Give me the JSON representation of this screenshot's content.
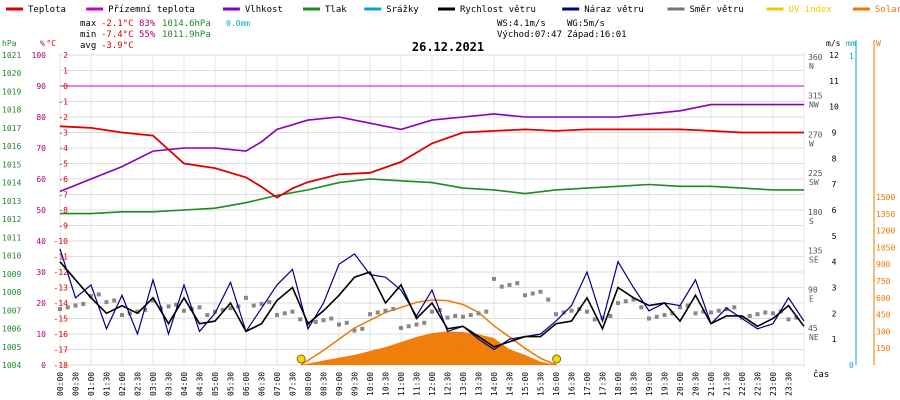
{
  "chart_data": {
    "type": "line",
    "title": "26.12.2021",
    "x_unit_label": "čas",
    "x_ticks": [
      "00:00",
      "00:30",
      "01:00",
      "01:30",
      "02:00",
      "02:30",
      "03:00",
      "03:30",
      "04:00",
      "04:30",
      "05:00",
      "05:30",
      "06:00",
      "06:30",
      "07:00",
      "07:30",
      "08:00",
      "08:30",
      "09:00",
      "09:30",
      "10:00",
      "10:30",
      "11:00",
      "11:30",
      "12:00",
      "12:30",
      "13:00",
      "13:30",
      "14:00",
      "14:30",
      "15:00",
      "15:30",
      "16:00",
      "16:30",
      "17:00",
      "17:30",
      "18:00",
      "18:30",
      "19:00",
      "19:30",
      "20:00",
      "20:30",
      "21:00",
      "21:30",
      "22:00",
      "22:30",
      "23:00",
      "23:30"
    ],
    "legend": [
      {
        "key": "teplota",
        "label": "Teplota",
        "color": "#dd0000"
      },
      {
        "key": "pocitova",
        "label": "Přízemní teplota",
        "color": "#cc00cc"
      },
      {
        "key": "vlhkost",
        "label": "Vlhkost",
        "color": "#8800bb"
      },
      {
        "key": "tlak",
        "label": "Tlak",
        "color": "#228822"
      },
      {
        "key": "srazky",
        "label": "Srážky",
        "color": "#00aacc"
      },
      {
        "key": "rychlost",
        "label": "Rychlost větru",
        "color": "#000000"
      },
      {
        "key": "naraz",
        "label": "Náraz větru",
        "color": "#000088"
      },
      {
        "key": "smer",
        "label": "Směr větru",
        "color": "#777777"
      },
      {
        "key": "uv",
        "label": "UV index",
        "color": "#eecc00"
      },
      {
        "key": "solar",
        "label": "Solar",
        "color": "#ee7700"
      }
    ],
    "stats": {
      "max_label": "max",
      "max_temp": "-2.1°C",
      "max_hum": "83%",
      "max_press": "1014.6hPa",
      "max_rain": "0.0mm",
      "min_label": "min",
      "min_temp": "-7.4°C",
      "min_hum": "55%",
      "min_press": "1011.9hPa",
      "avg_label": "avg",
      "avg_temp": "-3.9°C"
    },
    "wind_info": {
      "ws": "WS:4.1m/s",
      "wg": "WG:5m/s",
      "sunrise": "Východ:07:47",
      "sunset": "Západ:16:01"
    },
    "axes": {
      "press": {
        "unit": "hPa",
        "color": "#228822",
        "ticks": [
          "1021",
          "1020",
          "1019",
          "1018",
          "1017",
          "1016",
          "1015",
          "1014",
          "1013",
          "1012",
          "1011",
          "1010",
          "1009",
          "1008",
          "1007",
          "1006",
          "1005",
          "1004"
        ]
      },
      "hum": {
        "unit": "%",
        "color": "#aa0077",
        "ticks": [
          "100",
          "90",
          "80",
          "70",
          "60",
          "50",
          "40",
          "30",
          "20",
          "10",
          "0"
        ]
      },
      "temp": {
        "unit": "°C",
        "color": "#dd0000",
        "ticks": [
          "2",
          "1",
          "0",
          "-1",
          "-2",
          "-3",
          "-4",
          "-5",
          "-6",
          "-7",
          "-8",
          "-9",
          "-10",
          "-11",
          "-12",
          "-13",
          "-14",
          "-15",
          "-16",
          "-17",
          "-18"
        ]
      },
      "dir": {
        "labels": [
          "360",
          "315",
          "270",
          "225",
          "180",
          "135",
          "90",
          "45"
        ],
        "compass": [
          "N",
          "NW",
          "W",
          "SW",
          "S",
          "SE",
          "E",
          "NE"
        ]
      },
      "ms": {
        "unit": "m/s",
        "ticks": [
          "12",
          "11",
          "10",
          "9",
          "8",
          "7",
          "6",
          "5",
          "4",
          "3",
          "2",
          "1"
        ]
      },
      "mm": {
        "unit": "mm",
        "ticks": [
          "1",
          "0"
        ]
      },
      "w": {
        "unit": "W",
        "ticks": [
          "1500",
          "1350",
          "1200",
          "1050",
          "900",
          "750",
          "600",
          "450",
          "300",
          "150"
        ]
      }
    },
    "series": {
      "teplota": {
        "x": [
          0,
          1,
          2,
          3,
          4,
          5,
          6,
          6.5,
          7,
          7.5,
          8,
          9,
          10,
          11,
          12,
          13,
          14,
          15,
          16,
          17,
          18,
          19,
          20,
          21,
          22,
          23,
          24
        ],
        "y": [
          -2.6,
          -2.7,
          -3.0,
          -3.2,
          -5.0,
          -5.3,
          -5.9,
          -6.5,
          -7.2,
          -6.6,
          -6.2,
          -5.7,
          -5.6,
          -4.9,
          -3.7,
          -3.0,
          -2.9,
          -2.8,
          -2.9,
          -2.8,
          -2.8,
          -2.8,
          -2.8,
          -2.9,
          -3.0,
          -3.0,
          -3.0
        ]
      },
      "vlhkost": {
        "x": [
          0,
          1,
          2,
          3,
          4,
          5,
          6,
          6.5,
          7,
          8,
          9,
          10,
          11,
          12,
          13,
          14,
          15,
          16,
          17,
          18,
          19,
          20,
          21,
          22,
          23,
          24
        ],
        "y": [
          56,
          60,
          64,
          69,
          70,
          70,
          69,
          72,
          76,
          79,
          80,
          78,
          76,
          79,
          80,
          81,
          80,
          80,
          80,
          80,
          81,
          82,
          84,
          84,
          84,
          84
        ]
      },
      "tlak": {
        "x": [
          0,
          1,
          2,
          3,
          4,
          5,
          6,
          7,
          8,
          9,
          10,
          11,
          12,
          13,
          14,
          15,
          16,
          17,
          18,
          19,
          20,
          21,
          22,
          23,
          24
        ],
        "y": [
          1012.3,
          1012.3,
          1012.4,
          1012.4,
          1012.5,
          1012.6,
          1012.9,
          1013.3,
          1013.6,
          1014.0,
          1014.2,
          1014.1,
          1014.0,
          1013.7,
          1013.6,
          1013.4,
          1013.6,
          1013.7,
          1013.8,
          1013.9,
          1013.8,
          1013.8,
          1013.7,
          1013.6,
          1013.6
        ]
      },
      "rychlost": {
        "x": [
          0,
          0.5,
          1,
          1.5,
          2,
          2.5,
          3,
          3.5,
          4,
          4.5,
          5,
          5.5,
          6,
          6.5,
          7,
          7.5,
          8,
          8.5,
          9,
          9.5,
          10,
          10.5,
          11,
          11.5,
          12,
          12.5,
          13,
          13.5,
          14,
          14.5,
          15,
          15.5,
          16,
          16.5,
          17,
          17.5,
          18,
          18.5,
          19,
          19.5,
          20,
          20.5,
          21,
          21.5,
          22,
          22.5,
          23,
          23.5,
          24
        ],
        "y": [
          4,
          3.3,
          2.6,
          2.0,
          2.3,
          2.0,
          2.6,
          1.6,
          2.6,
          1.6,
          1.7,
          2.4,
          1.3,
          1.6,
          2.5,
          3.0,
          1.6,
          2.1,
          2.7,
          3.4,
          3.6,
          2.4,
          3.1,
          1.8,
          2.4,
          1.4,
          1.5,
          1.1,
          0.7,
          0.9,
          1.1,
          1.1,
          1.6,
          1.7,
          2.6,
          1.4,
          3.0,
          2.6,
          2.3,
          2.4,
          1.7,
          2.7,
          1.6,
          1.9,
          1.9,
          1.5,
          1.8,
          2.3,
          1.5
        ]
      },
      "naraz": {
        "x": [
          0,
          0.5,
          1,
          1.5,
          2,
          2.5,
          3,
          3.5,
          4,
          4.5,
          5,
          5.5,
          6,
          6.5,
          7,
          7.5,
          8,
          8.5,
          9,
          9.5,
          10,
          10.5,
          11,
          11.5,
          12,
          12.5,
          13,
          13.5,
          14,
          14.5,
          15,
          15.5,
          16,
          16.5,
          17,
          17.5,
          18,
          18.5,
          19,
          19.5,
          20,
          20.5,
          21,
          21.5,
          22,
          22.5,
          23,
          23.5,
          24
        ],
        "y": [
          4.5,
          2.6,
          3.1,
          1.4,
          2.7,
          1.2,
          3.3,
          1.2,
          3.1,
          1.3,
          2.0,
          3.2,
          1.3,
          2.2,
          3.1,
          3.7,
          1.4,
          2.4,
          3.9,
          4.3,
          3.5,
          3.4,
          2.9,
          1.9,
          2.9,
          1.3,
          1.5,
          1.0,
          0.6,
          1.0,
          1.1,
          1.2,
          1.7,
          2.3,
          3.6,
          1.7,
          4.0,
          3.0,
          2.1,
          2.4,
          2.3,
          3.3,
          1.6,
          2.2,
          1.8,
          1.4,
          1.6,
          2.6,
          1.7
        ]
      },
      "smer": {
        "x": [
          0,
          1,
          2,
          3,
          4,
          5,
          6,
          7,
          8,
          9,
          10,
          11,
          12,
          13,
          14,
          15,
          16,
          17,
          18,
          19,
          20,
          21,
          22,
          23,
          24
        ],
        "y": [
          70,
          78,
          60,
          70,
          62,
          65,
          74,
          58,
          52,
          44,
          60,
          48,
          60,
          58,
          95,
          80,
          62,
          58,
          72,
          58,
          64,
          62,
          60,
          58,
          55
        ]
      },
      "solar": {
        "x": [
          7.77,
          8.5,
          9.5,
          10.5,
          11.5,
          12,
          12.5,
          13,
          13.5,
          14,
          14.5,
          15,
          15.5,
          16.02
        ],
        "y": [
          0,
          40,
          90,
          160,
          250,
          285,
          300,
          295,
          275,
          240,
          140,
          90,
          30,
          0
        ]
      },
      "solar_theoretical": {
        "x": [
          7.77,
          8.5,
          9.5,
          10.5,
          11.5,
          12,
          12.5,
          13,
          13.5,
          14,
          14.5,
          15,
          15.5,
          16.02
        ],
        "y": [
          0,
          130,
          330,
          470,
          560,
          580,
          575,
          540,
          470,
          350,
          250,
          150,
          60,
          0
        ]
      },
      "sun_markers": {
        "sunrise_hour": 7.78,
        "sunset_hour": 16.02
      },
      "pocitova_ref_hum": 90
    }
  }
}
